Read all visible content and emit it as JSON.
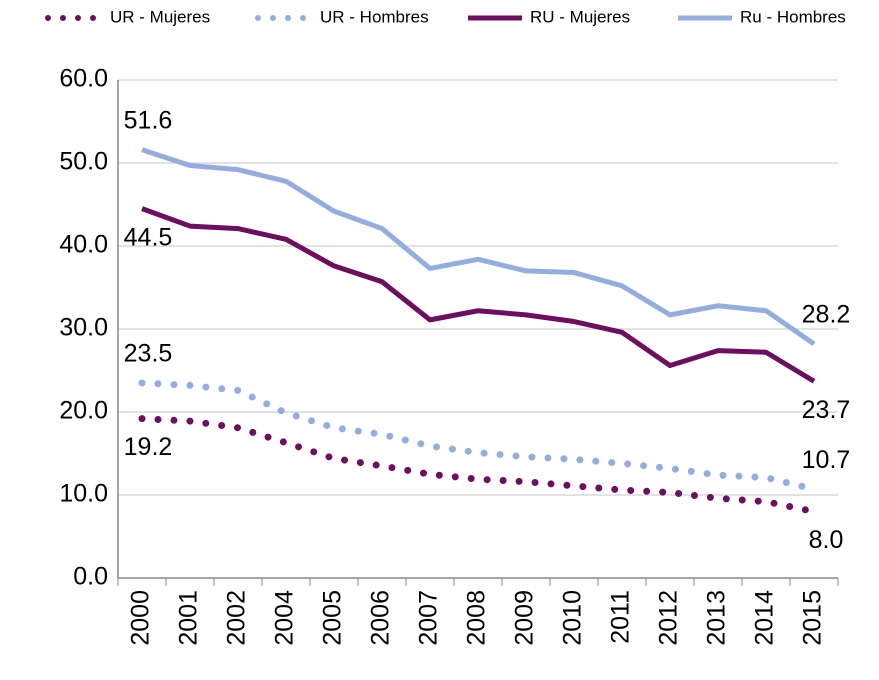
{
  "chart_data": {
    "type": "line",
    "categories": [
      "2000",
      "2001",
      "2002",
      "2004",
      "2005",
      "2006",
      "2007",
      "2008",
      "2009",
      "2010",
      "2011",
      "2012",
      "2013",
      "2014",
      "2015"
    ],
    "series": [
      {
        "name": "UR - Mujeres",
        "color": "#6b0f5e",
        "style": "dotted",
        "values": [
          19.2,
          18.9,
          18.1,
          16.3,
          14.4,
          13.5,
          12.5,
          11.9,
          11.6,
          11.1,
          10.6,
          10.3,
          9.6,
          9.2,
          8.0
        ],
        "value_labels": [
          "19.2",
          null,
          null,
          null,
          null,
          null,
          null,
          null,
          null,
          null,
          null,
          null,
          null,
          null,
          "8.0"
        ]
      },
      {
        "name": "UR - Hombres",
        "color": "#93aede",
        "style": "dotted",
        "values": [
          23.5,
          23.2,
          22.6,
          19.9,
          18.1,
          17.3,
          15.9,
          15.1,
          14.6,
          14.3,
          13.8,
          13.2,
          12.4,
          12.1,
          10.7
        ],
        "value_labels": [
          "23.5",
          null,
          null,
          null,
          null,
          null,
          null,
          null,
          null,
          null,
          null,
          null,
          null,
          null,
          "10.7"
        ]
      },
      {
        "name": "RU - Mujeres",
        "color": "#6b0f5e",
        "style": "solid",
        "values": [
          44.5,
          42.4,
          42.1,
          40.8,
          37.6,
          35.7,
          31.1,
          32.2,
          31.7,
          30.9,
          29.6,
          25.6,
          27.4,
          27.2,
          23.7
        ],
        "value_labels": [
          "44.5",
          null,
          null,
          null,
          null,
          null,
          null,
          null,
          null,
          null,
          null,
          null,
          null,
          null,
          "23.7"
        ]
      },
      {
        "name": "Ru - Hombres",
        "color": "#93aede",
        "style": "solid",
        "values": [
          51.6,
          49.7,
          49.2,
          47.8,
          44.2,
          42.1,
          37.3,
          38.4,
          37.0,
          36.8,
          35.2,
          31.7,
          32.8,
          32.2,
          28.2
        ],
        "value_labels": [
          "51.6",
          null,
          null,
          null,
          null,
          null,
          null,
          null,
          null,
          null,
          null,
          null,
          null,
          null,
          "28.2"
        ]
      }
    ],
    "ylim": [
      0,
      60
    ],
    "yticks": [
      {
        "value": 0,
        "label": "0.0"
      },
      {
        "value": 10,
        "label": "10.0"
      },
      {
        "value": 20,
        "label": "20.0"
      },
      {
        "value": 30,
        "label": "30.0"
      },
      {
        "value": 40,
        "label": "40.0"
      },
      {
        "value": 50,
        "label": "50.0"
      },
      {
        "value": 60,
        "label": "60.0"
      }
    ],
    "grid": true,
    "legend": "top"
  }
}
